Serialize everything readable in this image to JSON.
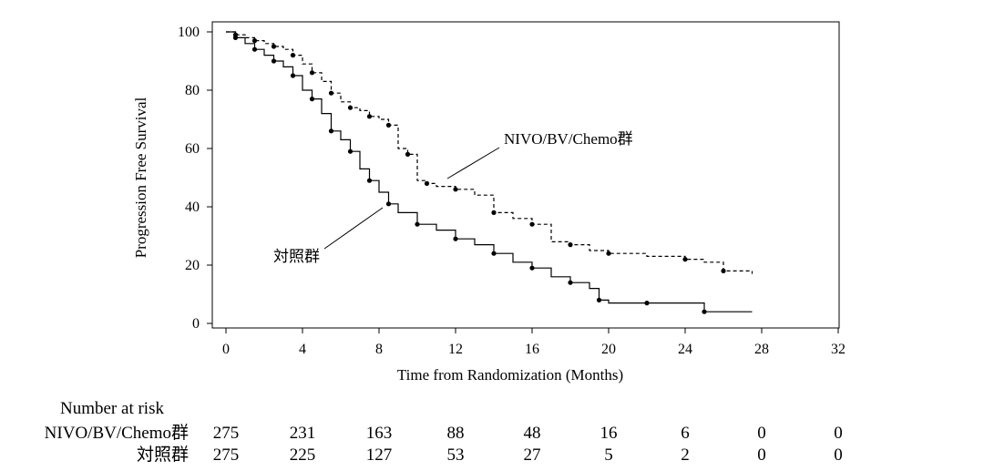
{
  "chart_data": {
    "type": "line",
    "subtype": "kaplan-meier",
    "xlabel": "Time from Randomization (Months)",
    "ylabel": "Progression Free Survival",
    "xlim": [
      0,
      32
    ],
    "ylim": [
      0,
      100
    ],
    "xticks": [
      0,
      4,
      8,
      12,
      16,
      20,
      24,
      28,
      32
    ],
    "yticks": [
      0,
      20,
      40,
      60,
      80,
      100
    ],
    "grid": false,
    "legend": "none",
    "annotations": [
      {
        "text": "NIVO/BV/Chemo群",
        "series": "NIVO/BV/Chemo群"
      },
      {
        "text": "対照群",
        "series": "対照群"
      }
    ],
    "series": [
      {
        "name": "NIVO/BV/Chemo群",
        "line_style": "dashed",
        "x": [
          0,
          0.5,
          1,
          1.5,
          2,
          2.5,
          3,
          3.5,
          4,
          4.5,
          5,
          5.5,
          6,
          6.5,
          7,
          7.5,
          8,
          8.5,
          9,
          9.5,
          10,
          10.5,
          11,
          12,
          13,
          14,
          15,
          16,
          17,
          18,
          19,
          20,
          22,
          24,
          25,
          26,
          27.5
        ],
        "y": [
          100,
          99,
          98,
          97,
          96,
          95,
          94,
          92,
          89,
          86,
          83,
          79,
          76,
          74,
          73,
          71,
          70,
          68,
          60,
          58,
          49,
          48,
          47,
          46,
          44,
          38,
          36,
          34,
          28,
          27,
          25,
          24,
          23,
          22,
          21,
          18,
          17
        ]
      },
      {
        "name": "対照群",
        "line_style": "solid",
        "x": [
          0,
          0.5,
          1,
          1.5,
          2,
          2.5,
          3,
          3.5,
          4,
          4.5,
          5,
          5.5,
          6,
          6.5,
          7,
          7.5,
          8,
          8.5,
          9,
          10,
          11,
          12,
          13,
          14,
          15,
          16,
          17,
          18,
          19,
          19.5,
          20,
          22,
          24,
          25,
          27.5
        ],
        "y": [
          100,
          98,
          96,
          94,
          92,
          90,
          88,
          85,
          80,
          77,
          72,
          66,
          63,
          59,
          53,
          49,
          45,
          41,
          38,
          34,
          32,
          29,
          27,
          24,
          21,
          19,
          16,
          14,
          12,
          8,
          7,
          7,
          7,
          4,
          4
        ]
      }
    ],
    "risk_table": {
      "title": "Number at risk",
      "times": [
        0,
        4,
        8,
        12,
        16,
        20,
        24,
        28,
        32
      ],
      "rows": [
        {
          "label": "NIVO/BV/Chemo群",
          "values": [
            275,
            231,
            163,
            88,
            48,
            16,
            6,
            0,
            0
          ]
        },
        {
          "label": "対照群",
          "values": [
            275,
            225,
            127,
            53,
            27,
            5,
            2,
            0,
            0
          ]
        }
      ]
    }
  }
}
